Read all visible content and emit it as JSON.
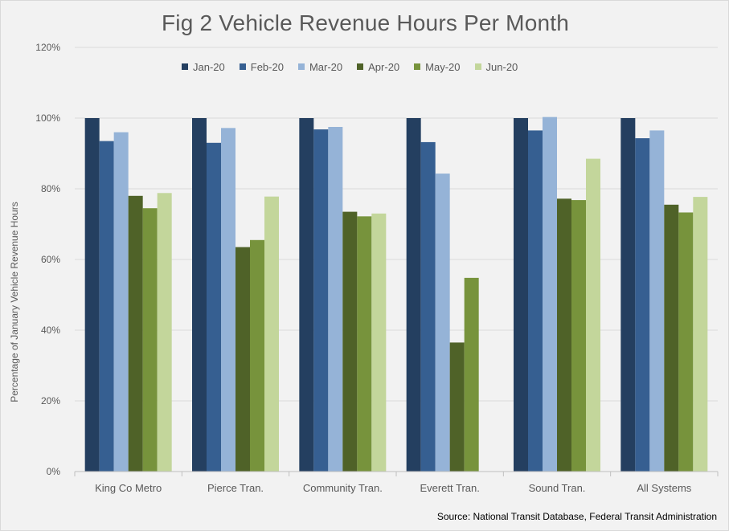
{
  "chart_data": {
    "type": "bar",
    "title": "Fig 2 Vehicle Revenue Hours Per Month",
    "ylabel": "Percentage of January Vehicle Revenue Hours",
    "xlabel": "",
    "ylim": [
      0,
      120
    ],
    "yticks": [
      0,
      20,
      40,
      60,
      80,
      100,
      120
    ],
    "ytick_labels": [
      "0%",
      "20%",
      "40%",
      "60%",
      "80%",
      "100%",
      "120%"
    ],
    "grid": true,
    "legend_position": "top",
    "categories": [
      "King Co Metro",
      "Pierce Tran.",
      "Community Tran.",
      "Everett Tran.",
      "Sound Tran.",
      "All Systems"
    ],
    "series": [
      {
        "name": "Jan-20",
        "color": "#243f60",
        "values": [
          100,
          100,
          100,
          100,
          100,
          100
        ]
      },
      {
        "name": "Feb-20",
        "color": "#365f91",
        "values": [
          93.5,
          93,
          96.8,
          93.2,
          96.5,
          94.3
        ]
      },
      {
        "name": "Mar-20",
        "color": "#95b3d7",
        "values": [
          96,
          97.2,
          97.5,
          84.3,
          100.3,
          96.5
        ]
      },
      {
        "name": "Apr-20",
        "color": "#4f6228",
        "values": [
          78,
          63.5,
          73.5,
          36.5,
          77.2,
          75.5
        ]
      },
      {
        "name": "May-20",
        "color": "#77933c",
        "values": [
          74.5,
          65.5,
          72.2,
          54.8,
          76.8,
          73.3
        ]
      },
      {
        "name": "Jun-20",
        "color": "#c3d69b",
        "values": [
          78.8,
          77.8,
          73,
          null,
          88.5,
          77.7
        ]
      }
    ],
    "source": "Source: National Transit Database, Federal Transit Administration"
  }
}
